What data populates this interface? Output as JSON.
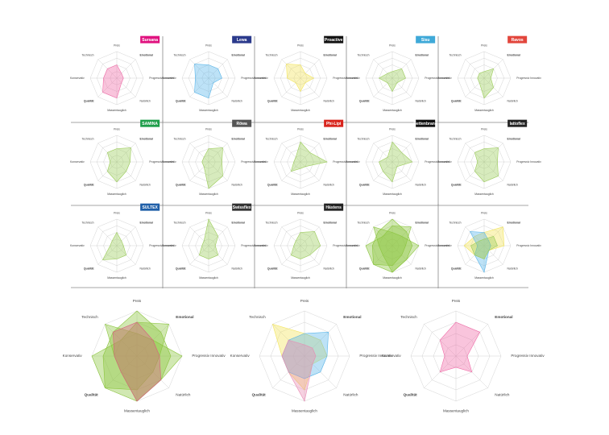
{
  "chart_data": [
    {
      "type": "radar",
      "title": "Sursana",
      "title_color": "#e0127f",
      "rlim": [
        0,
        4
      ],
      "rticks": [
        1,
        2,
        3,
        4
      ],
      "categories": [
        "Preis",
        "Emotional",
        "Progressiv Innovativ",
        "Natürlich",
        "Massentauglich",
        "Qualität",
        "Konservativ",
        "Technisch"
      ],
      "series": [
        {
          "color": "#f06ca8",
          "values": [
            2,
            1,
            1,
            1,
            3,
            3,
            2,
            2
          ]
        }
      ]
    },
    {
      "type": "radar",
      "title": "Lewa",
      "title_color": "#2b3a8c",
      "rlim": [
        0,
        4
      ],
      "rticks": [
        1,
        2,
        3,
        4
      ],
      "categories": [
        "Preis",
        "Emotional",
        "Progressiv Innovativ",
        "Natürlich",
        "Massentauglich",
        "Qualität",
        "Konservativ",
        "Technisch"
      ],
      "series": [
        {
          "color": "#5ab6ea",
          "values": [
            2,
            2,
            2,
            1,
            3,
            3,
            2,
            3
          ]
        }
      ]
    },
    {
      "type": "radar",
      "title": "Proactive",
      "title_color": "#111111",
      "rlim": [
        0,
        4
      ],
      "rticks": [
        1,
        2,
        3,
        4
      ],
      "categories": [
        "Preis",
        "Emotional",
        "Progressiv Innovativ",
        "Natürlich",
        "Massentauglich",
        "Qualität",
        "Konservativ",
        "Technisch"
      ],
      "series": [
        {
          "color": "#f2e45a",
          "values": [
            2,
            1,
            2,
            1,
            2,
            1,
            2,
            3
          ]
        }
      ]
    },
    {
      "type": "radar",
      "title": "Sisu",
      "title_color": "#3fa9d8",
      "rlim": [
        0,
        4
      ],
      "rticks": [
        1,
        2,
        3,
        4
      ],
      "categories": [
        "Preis",
        "Emotional",
        "Progressiv Innovativ",
        "Natürlich",
        "Massentauglich",
        "Qualität",
        "Konservativ",
        "Technisch"
      ],
      "series": [
        {
          "color": "#9ccc5a",
          "values": [
            1,
            2,
            2,
            1,
            2,
            1,
            2,
            1
          ]
        }
      ]
    },
    {
      "type": "radar",
      "title": "Ravos",
      "title_color": "#e2463c",
      "rlim": [
        0,
        4
      ],
      "rticks": [
        1,
        2,
        3,
        4
      ],
      "categories": [
        "Preis",
        "Emotional",
        "Progressiv Innovativ",
        "Natürlich",
        "Massentauglich",
        "Qualität",
        "Konservativ",
        "Technisch"
      ],
      "series": [
        {
          "color": "#9ccc5a",
          "values": [
            1,
            2,
            1,
            2,
            3,
            1,
            1,
            1
          ]
        }
      ]
    },
    {
      "type": "radar",
      "title": "SAMINA",
      "title_color": "#1e9e4a",
      "rlim": [
        0,
        4
      ],
      "rticks": [
        1,
        2,
        3,
        4
      ],
      "categories": [
        "Preis",
        "Emotional",
        "Progressiv Innovativ",
        "Natürlich",
        "Massentauglich",
        "Qualität",
        "Konservativ",
        "Technisch"
      ],
      "series": [
        {
          "color": "#9ccc5a",
          "values": [
            2,
            3,
            2,
            2,
            3,
            2,
            1,
            2
          ]
        }
      ]
    },
    {
      "type": "radar",
      "title": "Röwa",
      "title_color": "#555555",
      "rlim": [
        0,
        4
      ],
      "rticks": [
        1,
        2,
        3,
        4
      ],
      "categories": [
        "Preis",
        "Emotional",
        "Progressiv Innovativ",
        "Natürlich",
        "Massentauglich",
        "Qualität",
        "Konservativ",
        "Technisch"
      ],
      "series": [
        {
          "color": "#9ccc5a",
          "values": [
            2,
            3,
            2,
            3,
            4,
            1,
            1,
            1
          ]
        }
      ]
    },
    {
      "type": "radar",
      "title": "Phi-Lipi",
      "title_color": "#d8241c",
      "rlim": [
        0,
        4
      ],
      "rticks": [
        1,
        2,
        3,
        4
      ],
      "categories": [
        "Preis",
        "Emotional",
        "Progressiv Innovativ",
        "Natürlich",
        "Massentauglich",
        "Qualität",
        "Konservativ",
        "Technisch"
      ],
      "series": [
        {
          "color": "#9ccc5a",
          "values": [
            3,
            2,
            4,
            1,
            1,
            2,
            1,
            1
          ]
        }
      ]
    },
    {
      "type": "radar",
      "title": "Bettenbrand",
      "title_color": "#111111",
      "rlim": [
        0,
        4
      ],
      "rticks": [
        1,
        2,
        3,
        4
      ],
      "categories": [
        "Preis",
        "Emotional",
        "Progressiv Innovativ",
        "Natürlich",
        "Massentauglich",
        "Qualität",
        "Konservativ",
        "Technisch"
      ],
      "series": [
        {
          "color": "#9ccc5a",
          "values": [
            3,
            2,
            3,
            1,
            3,
            2,
            2,
            1
          ]
        }
      ]
    },
    {
      "type": "radar",
      "title": "lattoflex",
      "title_color": "#222222",
      "rlim": [
        0,
        4
      ],
      "rticks": [
        1,
        2,
        3,
        4
      ],
      "categories": [
        "Preis",
        "Emotional",
        "Progressiv Innovativ",
        "Natürlich",
        "Massentauglich",
        "Qualität",
        "Konservativ",
        "Technisch"
      ],
      "series": [
        {
          "color": "#9ccc5a",
          "values": [
            2,
            3,
            2,
            3,
            3,
            2,
            1,
            2
          ]
        }
      ]
    },
    {
      "type": "radar",
      "title": "SULTEX",
      "title_color": "#1f5fa8",
      "rlim": [
        0,
        4
      ],
      "rticks": [
        1,
        2,
        3,
        4
      ],
      "categories": [
        "Preis",
        "Emotional",
        "Progressiv Innovativ",
        "Natürlich",
        "Massentauglich",
        "Qualität",
        "Konservativ",
        "Technisch"
      ],
      "series": [
        {
          "color": "#9ccc5a",
          "values": [
            2,
            1,
            1,
            2,
            2,
            3,
            1,
            1
          ]
        }
      ]
    },
    {
      "type": "radar",
      "title": "Swissflex",
      "title_color": "#333333",
      "rlim": [
        0,
        4
      ],
      "rticks": [
        1,
        2,
        3,
        4
      ],
      "categories": [
        "Preis",
        "Emotional",
        "Progressiv Innovativ",
        "Natürlich",
        "Massentauglich",
        "Qualität",
        "Konservativ",
        "Technisch"
      ],
      "series": [
        {
          "color": "#9ccc5a",
          "values": [
            4,
            2,
            1,
            2,
            2,
            2,
            1,
            1
          ]
        }
      ]
    },
    {
      "type": "radar",
      "title": "Hästens",
      "title_color": "#222222",
      "rlim": [
        0,
        4
      ],
      "rticks": [
        1,
        2,
        3,
        4
      ],
      "categories": [
        "Preis",
        "Emotional",
        "Progressiv Innovativ",
        "Natürlich",
        "Massentauglich",
        "Qualität",
        "Konservativ",
        "Technisch"
      ],
      "series": [
        {
          "color": "#9ccc5a",
          "values": [
            2,
            3,
            3,
            2,
            2,
            2,
            1,
            1
          ]
        }
      ]
    },
    {
      "type": "radar",
      "rlim": [
        0,
        4
      ],
      "rticks": [
        1,
        2,
        3,
        4
      ],
      "categories": [
        "Preis",
        "Emotional",
        "Progressiv Innovativ",
        "Natürlich",
        "Massentauglich",
        "Qualität",
        "Konservativ",
        "Technisch"
      ],
      "series": [
        {
          "color": "#8cc63f",
          "values": [
            4,
            3,
            3,
            3,
            4,
            4,
            3,
            3
          ]
        },
        {
          "color": "#8cc63f",
          "values": [
            3,
            4,
            2,
            2,
            3,
            4,
            4,
            2
          ]
        },
        {
          "color": "#8cc63f",
          "values": [
            2,
            2,
            4,
            3,
            4,
            2,
            2,
            4
          ]
        }
      ]
    },
    {
      "type": "radar",
      "rlim": [
        0,
        4
      ],
      "rticks": [
        1,
        2,
        3,
        4
      ],
      "categories": [
        "Preis",
        "Emotional",
        "Progressiv Innovativ",
        "Natürlich",
        "Massentauglich",
        "Qualität",
        "Konservativ",
        "Technisch"
      ],
      "series": [
        {
          "color": "#f2e45a",
          "values": [
            2,
            4,
            3,
            1,
            2,
            2,
            3,
            2
          ]
        },
        {
          "color": "#5ab6ea",
          "values": [
            2,
            1,
            1,
            1,
            4,
            2,
            1,
            3
          ]
        },
        {
          "color": "#9ccc5a",
          "values": [
            1,
            2,
            2,
            1,
            2,
            2,
            2,
            1
          ]
        }
      ]
    },
    {
      "type": "radar",
      "rlim": [
        0,
        4
      ],
      "rticks": [
        1,
        2,
        3,
        4
      ],
      "categories": [
        "Preis",
        "Emotional",
        "Progressiv Innovativ",
        "Natürlich",
        "Massentauglich",
        "Qualität",
        "Konservativ",
        "Technisch"
      ],
      "series": [
        {
          "color": "#8cc63f",
          "values": [
            4,
            3,
            3,
            3,
            4,
            4,
            3,
            3
          ]
        },
        {
          "color": "#8cc63f",
          "values": [
            3,
            4,
            2,
            2,
            3,
            4,
            4,
            2
          ]
        },
        {
          "color": "#8cc63f",
          "values": [
            2,
            2,
            4,
            3,
            4,
            2,
            2,
            4
          ]
        },
        {
          "color": "#d9607f",
          "values": [
            3,
            2,
            2,
            3,
            4,
            2,
            2,
            3
          ]
        }
      ]
    },
    {
      "type": "radar",
      "rlim": [
        0,
        4
      ],
      "rticks": [
        1,
        2,
        3,
        4
      ],
      "categories": [
        "Preis",
        "Emotional",
        "Progressiv Innovativ",
        "Natürlich",
        "Massentauglich",
        "Qualität",
        "Konservativ",
        "Technisch"
      ],
      "series": [
        {
          "color": "#f2e45a",
          "values": [
            2,
            2,
            2,
            1,
            3,
            2,
            2,
            4
          ]
        },
        {
          "color": "#5ab6ea",
          "values": [
            2,
            3,
            2,
            2,
            2,
            2,
            2,
            2
          ]
        },
        {
          "color": "#e98bb4",
          "values": [
            1,
            1,
            1,
            1,
            4,
            2,
            2,
            2
          ]
        }
      ]
    },
    {
      "type": "radar",
      "rlim": [
        0,
        4
      ],
      "rticks": [
        1,
        2,
        3,
        4
      ],
      "categories": [
        "Preis",
        "Emotional",
        "Progressiv Innovativ",
        "Natürlich",
        "Massentauglich",
        "Qualität",
        "Konservativ",
        "Technisch"
      ],
      "series": [
        {
          "color": "#f06ca8",
          "values": [
            3,
            3,
            1,
            2,
            1,
            2,
            1,
            2
          ]
        }
      ]
    }
  ]
}
